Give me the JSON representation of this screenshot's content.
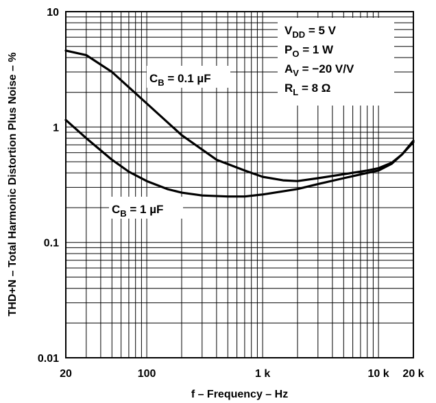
{
  "chart_data": {
    "type": "line",
    "title": "",
    "xlabel": "f – Frequency – Hz",
    "ylabel": "THD+N – Total Harmonic Distortion Plus Noise – %",
    "x_scale": "log",
    "y_scale": "log",
    "xlim": [
      20,
      20000
    ],
    "ylim": [
      0.01,
      10
    ],
    "grid": true,
    "x_ticks": [
      {
        "value": 20,
        "label": "20"
      },
      {
        "value": 100,
        "label": "100"
      },
      {
        "value": 1000,
        "label": "1 k"
      },
      {
        "value": 10000,
        "label": "10 k"
      },
      {
        "value": 20000,
        "label": "20 k"
      }
    ],
    "y_ticks": [
      {
        "value": 10,
        "label": "10"
      },
      {
        "value": 1,
        "label": "1"
      },
      {
        "value": 0.1,
        "label": "0.1"
      },
      {
        "value": 0.01,
        "label": "0.01"
      }
    ],
    "conditions": [
      {
        "main": "V",
        "sub": "DD",
        "rest": " = 5 V"
      },
      {
        "main": "P",
        "sub": "O",
        "rest": " = 1 W"
      },
      {
        "main": "A",
        "sub": "V",
        "rest": " = −20 V/V"
      },
      {
        "main": "R",
        "sub": "L",
        "rest": " = 8 Ω"
      }
    ],
    "series": [
      {
        "label": {
          "main": "C",
          "sub": "B",
          "rest": " = 0.1 µF"
        },
        "x": [
          20,
          30,
          50,
          100,
          200,
          400,
          700,
          1000,
          1500,
          2000,
          3000,
          5000,
          8000,
          10000,
          13000,
          16000,
          20000
        ],
        "y": [
          4.6,
          4.2,
          3.0,
          1.6,
          0.85,
          0.52,
          0.42,
          0.37,
          0.345,
          0.34,
          0.36,
          0.39,
          0.42,
          0.44,
          0.49,
          0.58,
          0.74
        ]
      },
      {
        "label": {
          "main": "C",
          "sub": "B",
          "rest": " = 1 µF"
        },
        "x": [
          20,
          30,
          50,
          70,
          100,
          150,
          200,
          300,
          500,
          700,
          1000,
          2000,
          3000,
          5000,
          8000,
          10000,
          13000,
          16000,
          20000
        ],
        "y": [
          1.15,
          0.8,
          0.52,
          0.41,
          0.34,
          0.29,
          0.27,
          0.255,
          0.25,
          0.25,
          0.26,
          0.29,
          0.32,
          0.36,
          0.4,
          0.42,
          0.48,
          0.58,
          0.76
        ]
      }
    ]
  }
}
